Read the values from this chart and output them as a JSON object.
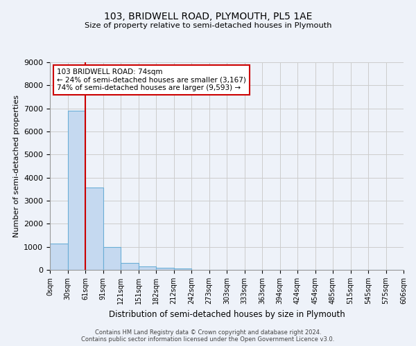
{
  "title1": "103, BRIDWELL ROAD, PLYMOUTH, PL5 1AE",
  "title2": "Size of property relative to semi-detached houses in Plymouth",
  "xlabel": "Distribution of semi-detached houses by size in Plymouth",
  "ylabel": "Number of semi-detached properties",
  "footnote": "Contains HM Land Registry data © Crown copyright and database right 2024.\nContains public sector information licensed under the Open Government Licence v3.0.",
  "bin_labels": [
    "0sqm",
    "30sqm",
    "61sqm",
    "91sqm",
    "121sqm",
    "151sqm",
    "182sqm",
    "212sqm",
    "242sqm",
    "273sqm",
    "303sqm",
    "333sqm",
    "363sqm",
    "394sqm",
    "424sqm",
    "454sqm",
    "485sqm",
    "515sqm",
    "545sqm",
    "575sqm",
    "606sqm"
  ],
  "bar_values": [
    1130,
    6900,
    3560,
    1000,
    310,
    155,
    100,
    75,
    0,
    0,
    0,
    0,
    0,
    0,
    0,
    0,
    0,
    0,
    0,
    0
  ],
  "bar_color": "#c5d9f0",
  "bar_edge_color": "#6aaed6",
  "grid_color": "#cccccc",
  "bg_color": "#eef2f9",
  "annotation_text": "103 BRIDWELL ROAD: 74sqm\n← 24% of semi-detached houses are smaller (3,167)\n74% of semi-detached houses are larger (9,593) →",
  "annotation_box_color": "#ffffff",
  "annotation_box_edge": "#cc0000",
  "red_line_color": "#cc0000",
  "red_line_x": 2.0,
  "ylim": [
    0,
    9000
  ],
  "yticks": [
    0,
    1000,
    2000,
    3000,
    4000,
    5000,
    6000,
    7000,
    8000,
    9000
  ]
}
